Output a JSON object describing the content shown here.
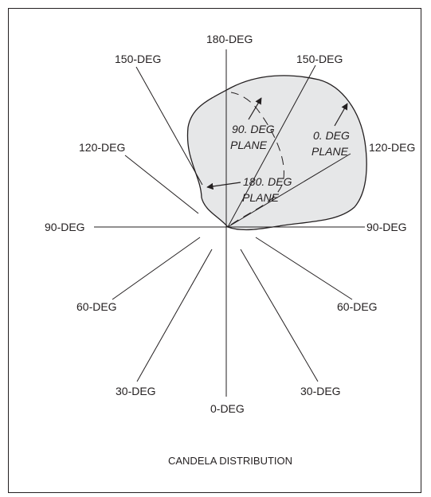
{
  "angle_labels": {
    "top": "180-DEG",
    "upper_left": "150-DEG",
    "upper_right": "150-DEG",
    "mid_left_upper": "120-DEG",
    "mid_right_upper": "120-DEG",
    "left": "90-DEG",
    "right": "90-DEG",
    "mid_left_lower": "60-DEG",
    "mid_right_lower": "60-DEG",
    "lower_left": "30-DEG",
    "lower_right": "30-DEG",
    "bottom": "0-DEG"
  },
  "planes": {
    "p90": [
      "90. DEG",
      "PLANE"
    ],
    "p0": [
      "0. DEG",
      "PLANE"
    ],
    "p180": [
      "180. DEG",
      "PLANE"
    ]
  },
  "caption": "CANDELA DISTRIBUTION",
  "colors": {
    "line": "#231f20",
    "fill": "#e6e7e8",
    "background": "#ffffff"
  }
}
